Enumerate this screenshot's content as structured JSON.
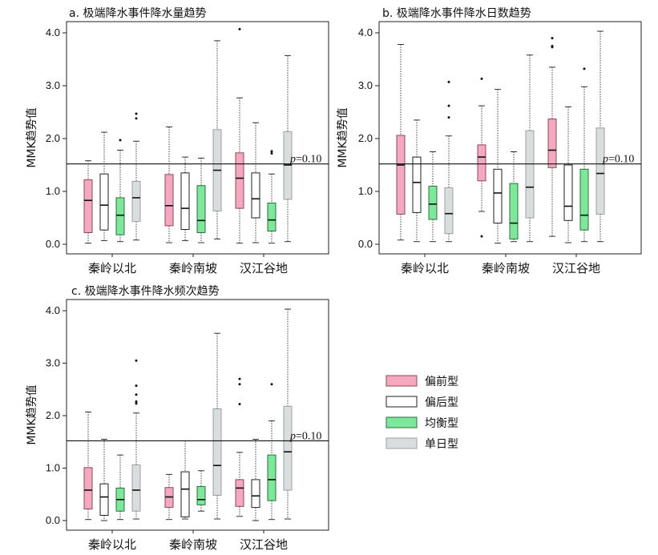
{
  "legend": [
    {
      "label": "偏前型",
      "color": "#f4a9c0",
      "stroke": "#8a4a5a"
    },
    {
      "label": "偏后型",
      "color": "#ffffff",
      "stroke": "#222222"
    },
    {
      "label": "均衡型",
      "color": "#7ee89a",
      "stroke": "#2d6e3f"
    },
    {
      "label": "单日型",
      "color": "#d9dddd",
      "stroke": "#9aa0a0"
    }
  ],
  "chart_data": [
    {
      "type": "box",
      "title": "a. 极端降水事件降水量趋势",
      "ylabel": "MMK趋势值",
      "ylim": [
        0,
        4.2
      ],
      "yticks": [
        "0.0",
        "1.0",
        "2.0",
        "3.0",
        "4.0"
      ],
      "ref_line": {
        "value": 1.52,
        "label_p": "p",
        "label_rest": "=0.10"
      },
      "categories": [
        "秦岭以北",
        "秦岭南坡",
        "汉江谷地"
      ],
      "groups": [
        [
          {
            "min": 0.02,
            "q1": 0.22,
            "median": 0.83,
            "q3": 1.22,
            "max": 1.58,
            "outliers": []
          },
          {
            "min": 0.07,
            "q1": 0.27,
            "median": 0.74,
            "q3": 1.33,
            "max": 2.12,
            "outliers": []
          },
          {
            "min": 0.05,
            "q1": 0.18,
            "median": 0.55,
            "q3": 0.88,
            "max": 1.78,
            "outliers": [
              1.97
            ]
          },
          {
            "min": 0.08,
            "q1": 0.43,
            "median": 0.88,
            "q3": 1.19,
            "max": 1.95,
            "outliers": [
              2.38,
              2.47
            ]
          }
        ],
        [
          {
            "min": 0.03,
            "q1": 0.35,
            "median": 0.73,
            "q3": 1.32,
            "max": 2.22,
            "outliers": []
          },
          {
            "min": 0.07,
            "q1": 0.28,
            "median": 0.68,
            "q3": 1.35,
            "max": 1.65,
            "outliers": []
          },
          {
            "min": 0.03,
            "q1": 0.22,
            "median": 0.45,
            "q3": 1.11,
            "max": 1.63,
            "outliers": []
          },
          {
            "min": 0.1,
            "q1": 0.63,
            "median": 1.4,
            "q3": 2.17,
            "max": 3.85,
            "outliers": []
          }
        ],
        [
          {
            "min": 0.02,
            "q1": 0.68,
            "median": 1.25,
            "q3": 1.73,
            "max": 2.77,
            "outliers": [
              4.07
            ]
          },
          {
            "min": 0.03,
            "q1": 0.5,
            "median": 0.86,
            "q3": 1.35,
            "max": 2.3,
            "outliers": []
          },
          {
            "min": 0.02,
            "q1": 0.25,
            "median": 0.46,
            "q3": 0.78,
            "max": 1.33,
            "outliers": [
              1.72,
              1.76
            ]
          },
          {
            "min": 0.05,
            "q1": 0.85,
            "median": 1.5,
            "q3": 2.13,
            "max": 3.57,
            "outliers": []
          }
        ]
      ]
    },
    {
      "type": "box",
      "title": "b. 极端降水事件降水日数趋势",
      "ylabel": "MMK趋势值",
      "ylim": [
        0,
        4.2
      ],
      "yticks": [
        "0.0",
        "1.0",
        "2.0",
        "3.0",
        "4.0"
      ],
      "ref_line": {
        "value": 1.52,
        "label_p": "p",
        "label_rest": "=0.10"
      },
      "categories": [
        "秦岭以北",
        "秦岭南坡",
        "汉江谷地"
      ],
      "groups": [
        [
          {
            "min": 0.08,
            "q1": 0.57,
            "median": 1.5,
            "q3": 2.06,
            "max": 3.78,
            "outliers": []
          },
          {
            "min": 0.05,
            "q1": 0.6,
            "median": 1.17,
            "q3": 1.65,
            "max": 2.35,
            "outliers": []
          },
          {
            "min": 0.05,
            "q1": 0.47,
            "median": 0.76,
            "q3": 1.1,
            "max": 1.75,
            "outliers": []
          },
          {
            "min": 0.05,
            "q1": 0.2,
            "median": 0.58,
            "q3": 1.07,
            "max": 2.05,
            "outliers": [
              2.4,
              2.62,
              3.07
            ]
          }
        ],
        [
          {
            "min": 0.62,
            "q1": 1.2,
            "median": 1.65,
            "q3": 1.88,
            "max": 2.62,
            "outliers": [
              0.15,
              3.13
            ]
          },
          {
            "min": 0.02,
            "q1": 0.4,
            "median": 0.97,
            "q3": 1.42,
            "max": 2.93,
            "outliers": []
          },
          {
            "min": 0.05,
            "q1": 0.1,
            "median": 0.4,
            "q3": 1.15,
            "max": 1.75,
            "outliers": []
          },
          {
            "min": 0.05,
            "q1": 0.5,
            "median": 1.08,
            "q3": 2.15,
            "max": 3.58,
            "outliers": []
          }
        ],
        [
          {
            "min": 0.15,
            "q1": 1.45,
            "median": 1.78,
            "q3": 2.37,
            "max": 3.35,
            "outliers": [
              3.73,
              3.75,
              3.9
            ]
          },
          {
            "min": 0.03,
            "q1": 0.45,
            "median": 0.72,
            "q3": 1.5,
            "max": 2.6,
            "outliers": []
          },
          {
            "min": 0.05,
            "q1": 0.27,
            "median": 0.55,
            "q3": 1.42,
            "max": 2.98,
            "outliers": [
              3.32
            ]
          },
          {
            "min": 0.05,
            "q1": 0.57,
            "median": 1.34,
            "q3": 2.2,
            "max": 4.03,
            "outliers": []
          }
        ]
      ]
    },
    {
      "type": "box",
      "title": "c. 极端降水事件降水频次趋势",
      "ylabel": "MMK趋势值",
      "ylim": [
        0,
        4.2
      ],
      "yticks": [
        "0.0",
        "1.0",
        "2.0",
        "3.0",
        "4.0"
      ],
      "ref_line": {
        "value": 1.52,
        "label_p": "p",
        "label_rest": "=0.10"
      },
      "categories": [
        "秦岭以北",
        "秦岭南坡",
        "汉江谷地"
      ],
      "groups": [
        [
          {
            "min": 0.02,
            "q1": 0.22,
            "median": 0.58,
            "q3": 1.01,
            "max": 2.07,
            "outliers": []
          },
          {
            "min": 0.0,
            "q1": 0.1,
            "median": 0.45,
            "q3": 0.7,
            "max": 1.55,
            "outliers": []
          },
          {
            "min": 0.02,
            "q1": 0.18,
            "median": 0.4,
            "q3": 0.62,
            "max": 1.25,
            "outliers": []
          },
          {
            "min": 0.03,
            "q1": 0.18,
            "median": 0.58,
            "q3": 1.06,
            "max": 2.05,
            "outliers": [
              2.23,
              2.27,
              2.4,
              2.57,
              3.05
            ]
          }
        ],
        [
          {
            "min": 0.02,
            "q1": 0.25,
            "median": 0.45,
            "q3": 0.63,
            "max": 0.88,
            "outliers": []
          },
          {
            "min": 0.03,
            "q1": 0.07,
            "median": 0.6,
            "q3": 0.93,
            "max": 1.52,
            "outliers": []
          },
          {
            "min": 0.18,
            "q1": 0.3,
            "median": 0.4,
            "q3": 0.65,
            "max": 0.95,
            "outliers": []
          },
          {
            "min": 0.03,
            "q1": 0.48,
            "median": 1.05,
            "q3": 2.13,
            "max": 3.57,
            "outliers": []
          }
        ],
        [
          {
            "min": 0.08,
            "q1": 0.27,
            "median": 0.62,
            "q3": 0.78,
            "max": 1.3,
            "outliers": [
              2.22,
              2.6,
              2.7
            ]
          },
          {
            "min": 0.0,
            "q1": 0.25,
            "median": 0.47,
            "q3": 0.78,
            "max": 1.55,
            "outliers": []
          },
          {
            "min": 0.02,
            "q1": 0.38,
            "median": 0.78,
            "q3": 1.25,
            "max": 1.9,
            "outliers": [
              2.6
            ]
          },
          {
            "min": 0.03,
            "q1": 0.58,
            "median": 1.31,
            "q3": 2.18,
            "max": 4.03,
            "outliers": []
          }
        ]
      ]
    }
  ]
}
